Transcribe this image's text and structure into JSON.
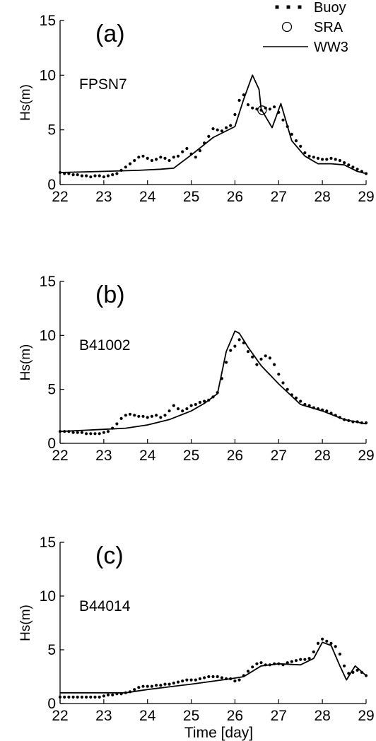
{
  "chart_data": [
    {
      "type": "line",
      "panel_label": "(a)",
      "station": "FPSN7",
      "xlabel": "",
      "ylabel": "Hs(m)",
      "xlim": [
        22,
        29
      ],
      "ylim": [
        0,
        15
      ],
      "xticks": [
        "22",
        "23",
        "24",
        "25",
        "26",
        "27",
        "28",
        "29"
      ],
      "yticks": [
        "0",
        "5",
        "10",
        "15"
      ],
      "grid": false,
      "legend_placement": "top-right",
      "legend": [
        {
          "key": "buoy",
          "label": "Buoy",
          "style": "dots"
        },
        {
          "key": "sra",
          "label": "SRA",
          "style": "circle"
        },
        {
          "key": "ww3",
          "label": "WW3",
          "style": "line"
        }
      ],
      "series": [
        {
          "key": "ww3",
          "style": "line",
          "x": [
            22.0,
            23.0,
            23.8,
            24.3,
            24.6,
            25.0,
            25.5,
            26.0,
            26.2,
            26.4,
            26.55,
            26.6,
            26.85,
            27.05,
            27.3,
            27.6,
            27.9,
            28.2,
            28.5,
            28.8,
            29.0
          ],
          "y": [
            1.1,
            1.2,
            1.3,
            1.4,
            1.5,
            2.7,
            4.3,
            5.3,
            7.8,
            10.0,
            8.7,
            6.9,
            5.2,
            7.4,
            4.0,
            2.6,
            1.9,
            1.9,
            1.8,
            1.2,
            1.0
          ]
        },
        {
          "key": "buoy",
          "style": "dots",
          "x": [
            22.0,
            22.1,
            22.2,
            22.3,
            22.4,
            22.5,
            22.6,
            22.7,
            22.8,
            22.9,
            23.0,
            23.1,
            23.2,
            23.3,
            23.4,
            23.5,
            23.6,
            23.7,
            23.8,
            23.9,
            24.0,
            24.1,
            24.2,
            24.3,
            24.4,
            24.5,
            24.6,
            24.7,
            24.8,
            24.9,
            25.0,
            25.1,
            25.2,
            25.3,
            25.4,
            25.5,
            25.6,
            25.7,
            25.8,
            25.9,
            26.0,
            26.1,
            26.2,
            26.3,
            26.4,
            26.5,
            26.6,
            26.7,
            26.8,
            26.9,
            27.0,
            27.1,
            27.2,
            27.3,
            27.4,
            27.5,
            27.6,
            27.7,
            27.8,
            27.9,
            28.0,
            28.1,
            28.2,
            28.3,
            28.4,
            28.5,
            28.6,
            28.7,
            28.8,
            28.9,
            29.0
          ],
          "y": [
            1.1,
            1.0,
            1.0,
            0.9,
            0.9,
            0.8,
            0.8,
            0.7,
            0.8,
            0.8,
            0.7,
            0.8,
            0.9,
            1.0,
            1.3,
            1.6,
            1.9,
            2.2,
            2.5,
            2.6,
            2.4,
            2.2,
            2.3,
            2.5,
            2.4,
            2.2,
            2.5,
            2.6,
            3.0,
            3.3,
            2.8,
            2.5,
            3.1,
            3.8,
            4.4,
            5.1,
            5.0,
            4.9,
            5.2,
            5.4,
            6.4,
            7.7,
            8.2,
            7.3,
            7.0,
            6.9,
            6.8,
            7.0,
            6.9,
            7.1,
            6.6,
            5.9,
            5.3,
            4.6,
            4.0,
            3.5,
            2.9,
            2.6,
            2.5,
            2.4,
            2.3,
            2.3,
            2.4,
            2.3,
            2.2,
            2.0,
            1.8,
            1.6,
            1.4,
            1.2,
            1.0
          ]
        },
        {
          "key": "sra",
          "style": "circle",
          "x": [
            26.62
          ],
          "y": [
            6.8
          ]
        }
      ]
    },
    {
      "type": "line",
      "panel_label": "(b)",
      "station": "B41002",
      "xlabel": "",
      "ylabel": "Hs(m)",
      "xlim": [
        22,
        29
      ],
      "ylim": [
        0,
        15
      ],
      "xticks": [
        "22",
        "23",
        "24",
        "25",
        "26",
        "27",
        "28",
        "29"
      ],
      "yticks": [
        "0",
        "5",
        "10",
        "15"
      ],
      "grid": false,
      "series": [
        {
          "key": "ww3",
          "style": "line",
          "x": [
            22.0,
            23.0,
            23.5,
            24.0,
            24.5,
            25.0,
            25.3,
            25.6,
            25.8,
            26.0,
            26.1,
            26.3,
            26.6,
            27.0,
            27.5,
            28.0,
            28.5,
            29.0
          ],
          "y": [
            1.1,
            1.3,
            1.4,
            1.7,
            2.2,
            3.0,
            3.7,
            4.6,
            8.5,
            10.4,
            10.2,
            8.9,
            7.2,
            5.5,
            3.6,
            3.0,
            2.2,
            1.8
          ]
        },
        {
          "key": "buoy",
          "style": "dots",
          "x": [
            22.0,
            22.1,
            22.2,
            22.3,
            22.4,
            22.5,
            22.6,
            22.7,
            22.8,
            22.9,
            23.0,
            23.1,
            23.2,
            23.3,
            23.4,
            23.5,
            23.6,
            23.7,
            23.8,
            23.9,
            24.0,
            24.1,
            24.2,
            24.3,
            24.4,
            24.5,
            24.6,
            24.7,
            24.8,
            24.9,
            25.0,
            25.1,
            25.2,
            25.3,
            25.4,
            25.5,
            25.6,
            25.7,
            25.8,
            25.9,
            26.0,
            26.1,
            26.2,
            26.3,
            26.4,
            26.5,
            26.6,
            26.7,
            26.8,
            26.9,
            27.0,
            27.1,
            27.2,
            27.3,
            27.4,
            27.5,
            27.6,
            27.7,
            27.8,
            27.9,
            28.0,
            28.1,
            28.2,
            28.3,
            28.4,
            28.5,
            28.6,
            28.7,
            28.8,
            28.9,
            29.0
          ],
          "y": [
            1.1,
            1.1,
            1.1,
            1.0,
            1.0,
            1.0,
            0.9,
            0.9,
            0.9,
            0.9,
            1.0,
            1.1,
            1.4,
            1.8,
            2.3,
            2.6,
            2.7,
            2.6,
            2.5,
            2.5,
            2.4,
            2.5,
            2.6,
            2.4,
            2.6,
            3.0,
            3.5,
            3.2,
            3.0,
            3.2,
            3.5,
            3.6,
            3.8,
            3.9,
            4.0,
            4.3,
            4.7,
            6.0,
            7.5,
            8.6,
            9.0,
            9.6,
            9.3,
            8.5,
            8.0,
            7.3,
            7.8,
            8.1,
            7.9,
            7.3,
            6.4,
            5.6,
            5.0,
            4.5,
            4.2,
            3.9,
            3.6,
            3.5,
            3.3,
            3.2,
            3.1,
            3.0,
            2.8,
            2.6,
            2.4,
            2.2,
            2.1,
            2.0,
            2.0,
            1.9,
            1.9
          ]
        }
      ]
    },
    {
      "type": "line",
      "panel_label": "(c)",
      "station": "B44014",
      "xlabel": "Time [day]",
      "ylabel": "Hs(m)",
      "xlim": [
        22,
        29
      ],
      "ylim": [
        0,
        15
      ],
      "xticks": [
        "22",
        "23",
        "24",
        "25",
        "26",
        "27",
        "28",
        "29"
      ],
      "yticks": [
        "0",
        "5",
        "10",
        "15"
      ],
      "grid": false,
      "series": [
        {
          "key": "ww3",
          "style": "line",
          "x": [
            22.0,
            23.0,
            23.5,
            24.0,
            25.0,
            25.9,
            26.2,
            26.6,
            27.0,
            27.5,
            27.8,
            28.0,
            28.2,
            28.4,
            28.55,
            28.75,
            29.0
          ],
          "y": [
            1.0,
            1.0,
            1.0,
            1.3,
            1.8,
            2.3,
            2.5,
            3.5,
            3.7,
            3.6,
            4.2,
            5.7,
            5.4,
            3.5,
            2.2,
            3.5,
            2.6
          ]
        },
        {
          "key": "buoy",
          "style": "dots",
          "x": [
            22.0,
            22.1,
            22.2,
            22.3,
            22.4,
            22.5,
            22.6,
            22.7,
            22.8,
            22.9,
            23.0,
            23.1,
            23.2,
            23.3,
            23.4,
            23.5,
            23.6,
            23.7,
            23.8,
            23.9,
            24.0,
            24.1,
            24.2,
            24.3,
            24.4,
            24.5,
            24.6,
            24.7,
            24.8,
            24.9,
            25.0,
            25.1,
            25.2,
            25.3,
            25.4,
            25.5,
            25.6,
            25.7,
            25.8,
            25.9,
            26.0,
            26.1,
            26.2,
            26.3,
            26.4,
            26.5,
            26.6,
            26.7,
            26.8,
            26.9,
            27.0,
            27.1,
            27.2,
            27.3,
            27.4,
            27.5,
            27.6,
            27.7,
            27.8,
            27.9,
            28.0,
            28.1,
            28.2,
            28.3,
            28.4,
            28.5,
            28.6,
            28.7,
            28.8,
            28.9,
            29.0
          ],
          "y": [
            0.6,
            0.6,
            0.6,
            0.6,
            0.6,
            0.6,
            0.6,
            0.6,
            0.6,
            0.6,
            0.7,
            0.8,
            0.8,
            0.9,
            0.9,
            1.0,
            1.1,
            1.3,
            1.5,
            1.6,
            1.6,
            1.6,
            1.7,
            1.7,
            1.8,
            1.8,
            1.9,
            2.0,
            2.1,
            2.2,
            2.2,
            2.2,
            2.3,
            2.4,
            2.5,
            2.5,
            2.5,
            2.4,
            2.3,
            2.3,
            2.1,
            2.2,
            2.6,
            3.0,
            3.4,
            3.7,
            3.8,
            3.6,
            3.6,
            3.7,
            3.7,
            3.6,
            3.8,
            3.9,
            4.0,
            4.1,
            4.1,
            4.2,
            4.8,
            5.6,
            6.0,
            5.8,
            5.6,
            5.3,
            4.6,
            3.5,
            2.8,
            2.9,
            3.1,
            2.9,
            2.6
          ]
        }
      ]
    }
  ]
}
